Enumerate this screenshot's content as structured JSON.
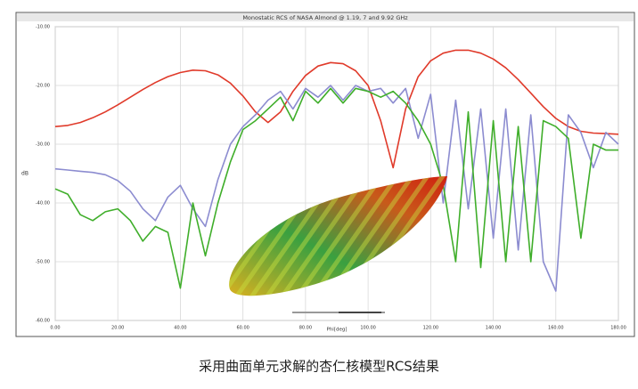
{
  "chart_data": {
    "type": "line",
    "title": "Monostatic RCS of NASA Almond @ 1.19, 7 and 9.92 GHz",
    "x_label": "Phi[deg]",
    "y_label": "dB",
    "x": [
      0,
      4,
      8,
      12,
      16,
      20,
      24,
      28,
      32,
      36,
      40,
      44,
      48,
      52,
      56,
      60,
      64,
      68,
      72,
      76,
      80,
      84,
      88,
      92,
      96,
      100,
      104,
      108,
      112,
      116,
      120,
      124,
      128,
      132,
      136,
      140,
      144,
      148,
      152,
      156,
      160,
      164,
      168,
      172,
      176,
      180
    ],
    "series": [
      {
        "name": "1.19 GHz",
        "color": "#e03a2a",
        "values": [
          -27,
          -26.8,
          -26.3,
          -25.5,
          -24.5,
          -23.3,
          -22,
          -20.7,
          -19.5,
          -18.5,
          -17.8,
          -17.4,
          -17.5,
          -18.2,
          -19.6,
          -21.8,
          -24.5,
          -26.3,
          -24.5,
          -21,
          -18.3,
          -16.7,
          -16.1,
          -16.3,
          -17.5,
          -20,
          -26,
          -34,
          -24,
          -18.5,
          -15.8,
          -14.5,
          -14,
          -14,
          -14.5,
          -15.5,
          -17,
          -19,
          -21.3,
          -23.6,
          -25.6,
          -27,
          -27.8,
          -28.1,
          -28.2,
          -28.3
        ]
      },
      {
        "name": "7 GHz",
        "color": "#8c8cd0",
        "values": [
          -34.2,
          -34.4,
          -34.6,
          -34.8,
          -35.2,
          -36.2,
          -38,
          -41,
          -43,
          -39,
          -37,
          -41,
          -44,
          -36,
          -30,
          -27,
          -25,
          -22.5,
          -21,
          -24,
          -20.5,
          -22,
          -20,
          -22.5,
          -20,
          -21,
          -20.5,
          -23,
          -20.5,
          -29,
          -21.5,
          -40,
          -22.5,
          -41,
          -24,
          -46,
          -24,
          -48,
          -25,
          -50,
          -55,
          -25,
          -28,
          -34,
          -28,
          -30
        ]
      },
      {
        "name": "9.92 GHz",
        "color": "#3fae2a",
        "values": [
          -37.6,
          -38.5,
          -42,
          -43,
          -41.5,
          -41,
          -43,
          -46.5,
          -44,
          -45,
          -54.5,
          -40,
          -49,
          -40,
          -33,
          -27.5,
          -26,
          -24,
          -22,
          -26,
          -21,
          -23,
          -20.5,
          -23,
          -20.5,
          -21,
          -22,
          -21,
          -23,
          -26,
          -30,
          -37,
          -50,
          -24.5,
          -51,
          -26,
          -50,
          -27,
          -50,
          -26,
          -27,
          -29,
          -46,
          -30,
          -31,
          -31
        ]
      }
    ],
    "xlim": [
      0,
      180
    ],
    "xticks": [
      {
        "value": 0,
        "label": "0.00"
      },
      {
        "value": 20,
        "label": "20.00"
      },
      {
        "value": 40,
        "label": "40.00"
      },
      {
        "value": 60,
        "label": "60.00"
      },
      {
        "value": 80,
        "label": "80.00"
      },
      {
        "value": 100,
        "label": "100.00"
      },
      {
        "value": 120,
        "label": "120.00"
      },
      {
        "value": 140,
        "label": "140.00"
      },
      {
        "value": 160,
        "label": "160.00"
      },
      {
        "value": 180,
        "label": "180.00"
      }
    ],
    "ylim": [
      -60,
      -10
    ],
    "yticks": [
      {
        "value": -10,
        "label": "-10.00"
      },
      {
        "value": -20,
        "label": "-20.00"
      },
      {
        "value": -30,
        "label": "-30.00"
      },
      {
        "value": -40,
        "label": "-40.00"
      },
      {
        "value": -50,
        "label": "-50.00"
      },
      {
        "value": -60,
        "label": "-60.00"
      }
    ],
    "grid": true
  },
  "caption": "采用曲面单元求解的杏仁核模型RCS结果"
}
